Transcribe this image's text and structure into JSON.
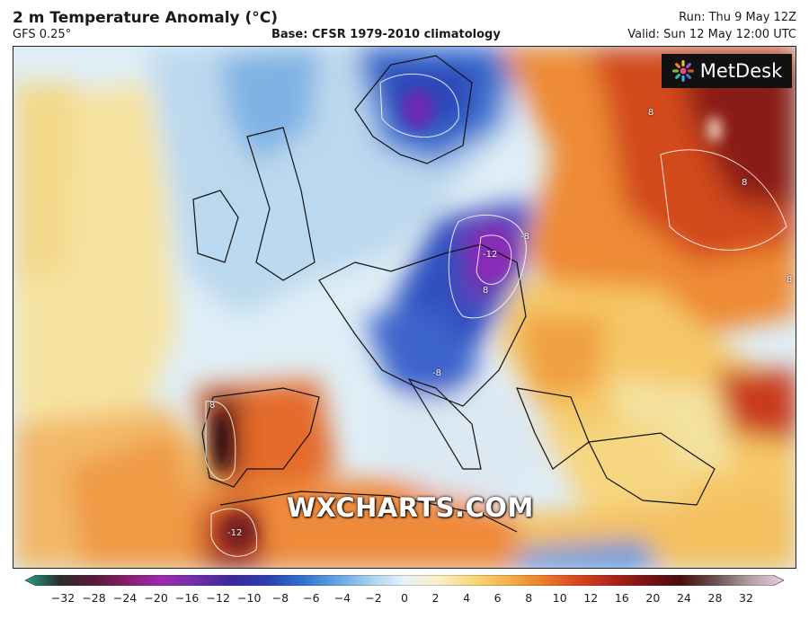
{
  "header": {
    "title": "2 m Temperature Anomaly (°C)",
    "model": "GFS 0.25°",
    "base": "Base: CFSR 1979-2010 climatology",
    "run": "Run: Thu 9 May 12Z",
    "valid": "Valid: Sun 12 May 12:00 UTC"
  },
  "logo": {
    "text": "MetDesk",
    "icon": "metdesk-starburst-icon"
  },
  "watermark": "WXCHARTS.COM",
  "colorbar": {
    "ticks": [
      "−32",
      "−28",
      "−24",
      "−20",
      "−16",
      "−12",
      "−10",
      "−8",
      "−6",
      "−4",
      "−2",
      "0",
      "2",
      "4",
      "6",
      "8",
      "10",
      "12",
      "16",
      "20",
      "24",
      "28",
      "32"
    ],
    "colors": [
      "#1fa38a",
      "#2b2b2b",
      "#5a1a3a",
      "#8b1e6e",
      "#9b2bb0",
      "#6b2fa8",
      "#3a2a9a",
      "#2a3fb0",
      "#2f6fd0",
      "#5fa2e0",
      "#a8d0ee",
      "#e8f2f8",
      "#fbefc6",
      "#f8d77c",
      "#f3b14a",
      "#ec7e2a",
      "#d9481e",
      "#b0261a",
      "#7a1414",
      "#4a0c0c",
      "#6a5050",
      "#b0a0a0",
      "#f0c8e8"
    ]
  },
  "contour_labels": [
    "-12",
    "-8",
    "8",
    "-8",
    "8",
    "8",
    "8",
    "-12",
    "8"
  ]
}
